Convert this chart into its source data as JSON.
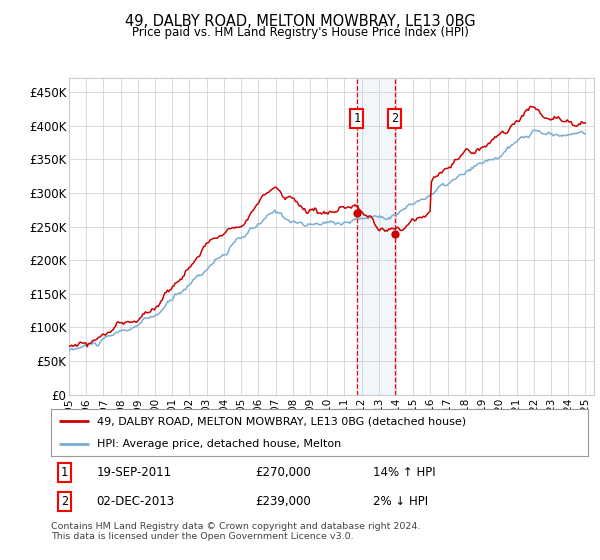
{
  "title_line1": "49, DALBY ROAD, MELTON MOWBRAY, LE13 0BG",
  "title_line2": "Price paid vs. HM Land Registry's House Price Index (HPI)",
  "ylabel_ticks": [
    "£0",
    "£50K",
    "£100K",
    "£150K",
    "£200K",
    "£250K",
    "£300K",
    "£350K",
    "£400K",
    "£450K"
  ],
  "ytick_values": [
    0,
    50000,
    100000,
    150000,
    200000,
    250000,
    300000,
    350000,
    400000,
    450000
  ],
  "ylim": [
    0,
    470000
  ],
  "xlim_start": 1995.0,
  "xlim_end": 2025.5,
  "sale1_date": 2011.72,
  "sale1_price": 270000,
  "sale1_label": "1",
  "sale2_date": 2013.92,
  "sale2_price": 239000,
  "sale2_label": "2",
  "marker_color": "#cc0000",
  "hpi_color": "#7aadd4",
  "sale_line_color": "#cc0000",
  "background_color": "#ffffff",
  "grid_color": "#cccccc",
  "shade_color": "#d8e8f5",
  "legend_label1": "49, DALBY ROAD, MELTON MOWBRAY, LE13 0BG (detached house)",
  "legend_label2": "HPI: Average price, detached house, Melton",
  "table_rows": [
    {
      "num": "1",
      "date": "19-SEP-2011",
      "price": "£270,000",
      "hpi": "14% ↑ HPI"
    },
    {
      "num": "2",
      "date": "02-DEC-2013",
      "price": "£239,000",
      "hpi": "2% ↓ HPI"
    }
  ],
  "footnote": "Contains HM Land Registry data © Crown copyright and database right 2024.\nThis data is licensed under the Open Government Licence v3.0."
}
